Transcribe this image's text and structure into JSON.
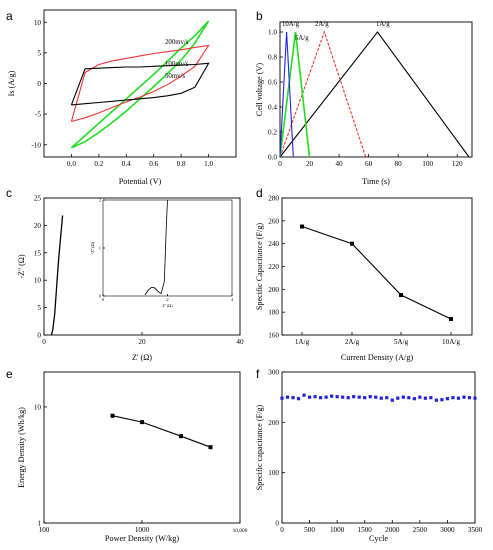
{
  "chart_data": [
    {
      "panel": "a",
      "type": "line",
      "xlabel": "Potential (V)",
      "ylabel": "Is (A/g)",
      "xlim": [
        -0.2,
        1.2
      ],
      "ylim": [
        -12,
        12
      ],
      "xticks": [
        "0.0",
        "0.2",
        "0.4",
        "0.6",
        "0.8",
        "1.0"
      ],
      "yticks": [
        "-10",
        "-5",
        "0",
        "5",
        "10"
      ],
      "annotations": [
        "200mv/s",
        "100mv/s",
        "50mv/s"
      ],
      "series": [
        {
          "name": "200mv/s",
          "color": "#22dd22",
          "x": [
            0,
            0.1,
            0.2,
            0.3,
            0.4,
            0.5,
            0.6,
            0.7,
            0.8,
            0.9,
            1.0,
            0.9,
            0.8,
            0.7,
            0.6,
            0.5,
            0.4,
            0.3,
            0.2,
            0.1,
            0
          ],
          "y": [
            -10.5,
            -8.5,
            -6.5,
            -4.5,
            -2.5,
            -0.5,
            1.5,
            3.6,
            5.8,
            7.8,
            10.2,
            6.6,
            3.8,
            1.6,
            -0.5,
            -2.5,
            -4.5,
            -6.3,
            -8.0,
            -9.5,
            -10.5
          ]
        },
        {
          "name": "100mv/s",
          "color": "#ee3333",
          "x": [
            0,
            0.1,
            0.2,
            0.3,
            0.4,
            0.5,
            0.6,
            0.7,
            0.8,
            0.9,
            1.0,
            0.9,
            0.8,
            0.7,
            0.6,
            0.5,
            0.4,
            0.3,
            0.2,
            0.1,
            0
          ],
          "y": [
            -6.2,
            -5.6,
            -4.8,
            -3.9,
            -3.0,
            -2.2,
            -1.3,
            -0.2,
            1.2,
            2.8,
            6.2,
            5.9,
            5.5,
            5.2,
            4.9,
            4.5,
            4.1,
            3.7,
            3.1,
            1.8,
            -6.2
          ]
        },
        {
          "name": "50mv/s",
          "color": "#000000",
          "x": [
            0,
            0.1,
            0.2,
            0.3,
            0.4,
            0.5,
            0.6,
            0.7,
            0.8,
            0.9,
            1.0,
            0.9,
            0.8,
            0.7,
            0.6,
            0.5,
            0.4,
            0.3,
            0.2,
            0.1,
            0
          ],
          "y": [
            -3.5,
            -3.3,
            -3.1,
            -2.9,
            -2.7,
            -2.5,
            -2.3,
            -2.0,
            -1.6,
            -0.6,
            3.3,
            3.1,
            3.0,
            2.9,
            2.8,
            2.7,
            2.7,
            2.6,
            2.5,
            2.4,
            -3.5
          ]
        }
      ]
    },
    {
      "panel": "b",
      "type": "line",
      "xlabel": "Time (s)",
      "ylabel": "Cell voltage (V)",
      "xlim": [
        0,
        130
      ],
      "ylim": [
        0,
        1.08
      ],
      "xticks": [
        "0",
        "20",
        "40",
        "60",
        "80",
        "100",
        "120"
      ],
      "yticks": [
        "0.0",
        "0.2",
        "0.4",
        "0.6",
        "0.8",
        "1.0"
      ],
      "annotations": [
        "10A/g",
        "5A/g",
        "2A/g",
        "1A/g"
      ],
      "series": [
        {
          "name": "1A/g",
          "color": "#000000",
          "x": [
            0,
            66,
            128
          ],
          "y": [
            0,
            1.0,
            0
          ]
        },
        {
          "name": "2A/g",
          "color": "#ee3333",
          "x": [
            0,
            30,
            58
          ],
          "y": [
            0,
            1.0,
            0
          ]
        },
        {
          "name": "5A/g",
          "color": "#22dd22",
          "x": [
            0,
            10.5,
            20
          ],
          "y": [
            0,
            1.0,
            0
          ]
        },
        {
          "name": "10A/g",
          "color": "#2222dd",
          "x": [
            0,
            4.5,
            9
          ],
          "y": [
            0,
            1.0,
            0
          ]
        }
      ]
    },
    {
      "panel": "c",
      "type": "line",
      "xlabel": "Z' (Ω)",
      "ylabel": "-Z'' (Ω)",
      "xlim": [
        0,
        40
      ],
      "ylim": [
        0,
        25
      ],
      "xticks": [
        "0",
        "20",
        "40"
      ],
      "yticks": [
        "0",
        "5",
        "10",
        "15",
        "20",
        "25"
      ],
      "series": [
        {
          "name": "",
          "color": "#000000",
          "x": [
            1.5,
            1.8,
            2.2,
            2.6,
            3.0,
            3.4,
            3.8
          ],
          "y": [
            0,
            1.0,
            4.0,
            9.0,
            14.0,
            18.0,
            21.8
          ]
        }
      ],
      "inset": {
        "xlabel": "Z' (Ω)",
        "ylabel": "-Z'' (Ω)",
        "xlim": [
          0,
          4
        ],
        "ylim": [
          0,
          2
        ],
        "xticks": [
          "0",
          "2",
          "4"
        ],
        "yticks": [
          "0",
          "1",
          "2"
        ],
        "x": [
          1.3,
          1.4,
          1.5,
          1.6,
          1.7,
          1.8,
          1.9,
          1.93,
          1.96,
          2.0
        ],
        "y": [
          0.02,
          0.12,
          0.18,
          0.17,
          0.1,
          0.05,
          0.3,
          0.8,
          1.4,
          2.0
        ]
      }
    },
    {
      "panel": "d",
      "type": "line",
      "xlabel": "Current Density (A/g)",
      "ylabel": "Specific Capacitance (F/g)",
      "categories": [
        "1A/g",
        "2A/g",
        "5A/g",
        "10A/g"
      ],
      "values": [
        255,
        240,
        195,
        174
      ],
      "ylim": [
        160,
        280
      ],
      "yticks": [
        "160",
        "180",
        "200",
        "220",
        "240",
        "260",
        "280"
      ]
    },
    {
      "panel": "e",
      "type": "line",
      "xlabel": "Power Density (W/kg)",
      "ylabel": "Energy Density (Wh/kg)",
      "x_scale": "log",
      "y_scale": "log",
      "xlim": [
        100,
        10000
      ],
      "ylim": [
        1,
        20
      ],
      "xticks": [
        "100",
        "1000",
        "10,000"
      ],
      "yticks": [
        "1",
        "10"
      ],
      "x": [
        500,
        1000,
        2500,
        5000
      ],
      "y": [
        8.4,
        7.4,
        5.6,
        4.5
      ]
    },
    {
      "panel": "f",
      "type": "scatter",
      "xlabel": "Cycle",
      "ylabel": "Specific capacitance (F/g)",
      "xlim": [
        0,
        3500
      ],
      "ylim": [
        0,
        300
      ],
      "xticks": [
        "0",
        "500",
        "1000",
        "1500",
        "2000",
        "2500",
        "3000",
        "3500"
      ],
      "yticks": [
        "0",
        "100",
        "200",
        "300"
      ],
      "color": "#2222dd",
      "x": [
        0,
        100,
        200,
        300,
        400,
        500,
        600,
        700,
        800,
        900,
        1000,
        1100,
        1200,
        1300,
        1400,
        1500,
        1600,
        1700,
        1800,
        1900,
        2000,
        2100,
        2200,
        2300,
        2400,
        2500,
        2600,
        2700,
        2800,
        2900,
        3000,
        3100,
        3200,
        3300,
        3400,
        3500
      ],
      "y": [
        248,
        250,
        249,
        247,
        254,
        250,
        251,
        249,
        250,
        252,
        251,
        250,
        249,
        251,
        250,
        249,
        251,
        250,
        248,
        249,
        244,
        248,
        250,
        249,
        247,
        250,
        248,
        249,
        244,
        245,
        247,
        249,
        248,
        250,
        249,
        248
      ]
    }
  ]
}
